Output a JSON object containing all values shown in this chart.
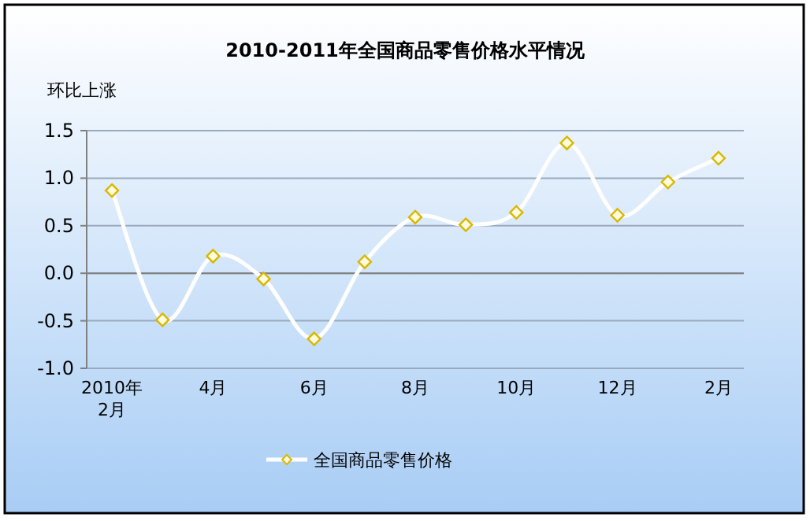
{
  "chart_data": {
    "type": "line",
    "title": "2010-2011年全国商品零售价格水平情况",
    "ylabel": "环比上涨",
    "categories": [
      "2010年\n2月",
      null,
      "4月",
      null,
      "6月",
      null,
      "8月",
      null,
      "10月",
      null,
      "12月",
      null,
      "2月"
    ],
    "series": [
      {
        "name": "全国商品零售价格",
        "color": "#ffffff",
        "values": [
          0.87,
          -0.49,
          0.18,
          -0.06,
          -0.69,
          0.12,
          0.59,
          0.51,
          0.64,
          1.37,
          0.61,
          0.96,
          1.21
        ]
      }
    ],
    "ylim": [
      -1.0,
      1.5
    ],
    "yticks": [
      {
        "value": -1.0,
        "label": "-1.0"
      },
      {
        "value": -0.5,
        "label": "-0.5"
      },
      {
        "value": 0.0,
        "label": "0.0"
      },
      {
        "value": 0.5,
        "label": "0.5"
      },
      {
        "value": 1.0,
        "label": "1.0"
      },
      {
        "value": 1.5,
        "label": "1.5"
      }
    ],
    "grid": "y",
    "legend": "bottom",
    "marker": "diamond",
    "line_style": "solid"
  }
}
